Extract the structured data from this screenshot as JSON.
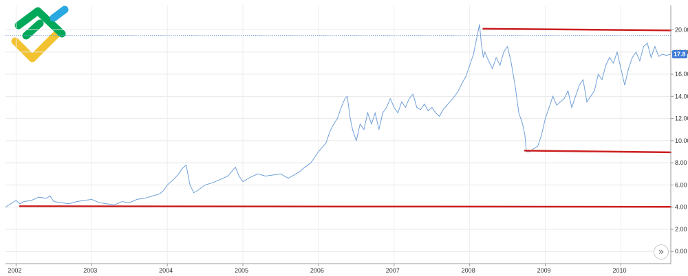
{
  "brand": {
    "colors": [
      "#00a859",
      "#2aa8e0",
      "#f2c230"
    ]
  },
  "scroll_button": {
    "icon": "double-chevron-right-icon",
    "label": "»"
  },
  "chart_data": {
    "type": "line",
    "x_ticks": [
      "2002",
      "2003",
      "2004",
      "2005",
      "2006",
      "2007",
      "2008",
      "2009",
      "2010"
    ],
    "y_ticks": [
      "0.00",
      "2.00",
      "4.00",
      "6.00",
      "8.00",
      "10.00",
      "12.00",
      "14.00",
      "16.00",
      "18.00",
      "20.00"
    ],
    "ylim": [
      -1.1,
      22.2
    ],
    "xlim": [
      2001.86,
      2010.66
    ],
    "grid": true,
    "last_value": {
      "label": "17.8",
      "value": 17.8
    },
    "reference_line": {
      "value": 19.5
    },
    "line_color": "#6f9fd8",
    "level_line_color": "#cc1f1f",
    "series": [
      {
        "x": [
          2001.86,
          2002.0,
          2002.05,
          2002.1,
          2002.2,
          2002.3,
          2002.4,
          2002.45,
          2002.5,
          2002.6,
          2002.7,
          2002.8,
          2002.9,
          2003.0,
          2003.1,
          2003.2,
          2003.3,
          2003.4,
          2003.5,
          2003.6,
          2003.7,
          2003.8,
          2003.9,
          2003.95,
          2004.0,
          2004.05,
          2004.1,
          2004.15,
          2004.2,
          2004.25,
          2004.3,
          2004.35,
          2004.4,
          2004.5,
          2004.6,
          2004.7,
          2004.8,
          2004.85,
          2004.9,
          2004.95,
          2005.0,
          2005.1,
          2005.2,
          2005.3,
          2005.4,
          2005.5,
          2005.6,
          2005.7,
          2005.75,
          2005.8,
          2005.9,
          2006.0,
          2006.1,
          2006.15,
          2006.2,
          2006.25,
          2006.3,
          2006.35,
          2006.38,
          2006.42,
          2006.45,
          2006.5,
          2006.55,
          2006.6,
          2006.65,
          2006.7,
          2006.75,
          2006.8,
          2006.85,
          2006.9,
          2006.95,
          2007.0,
          2007.05,
          2007.1,
          2007.15,
          2007.2,
          2007.25,
          2007.3,
          2007.35,
          2007.4,
          2007.45,
          2007.5,
          2007.55,
          2007.6,
          2007.65,
          2007.7,
          2007.75,
          2007.8,
          2007.85,
          2007.9,
          2007.95,
          2008.0,
          2008.05,
          2008.1,
          2008.13,
          2008.15,
          2008.18,
          2008.2,
          2008.25,
          2008.3,
          2008.35,
          2008.4,
          2008.45,
          2008.5,
          2008.55,
          2008.6,
          2008.65,
          2008.7,
          2008.73,
          2008.75,
          2008.8,
          2008.85,
          2008.9,
          2008.95,
          2009.0,
          2009.05,
          2009.1,
          2009.15,
          2009.2,
          2009.25,
          2009.3,
          2009.35,
          2009.4,
          2009.45,
          2009.5,
          2009.55,
          2009.6,
          2009.65,
          2009.7,
          2009.75,
          2009.8,
          2009.85,
          2009.9,
          2009.95,
          2010.0,
          2010.05,
          2010.1,
          2010.15,
          2010.2,
          2010.25,
          2010.3,
          2010.35,
          2010.4,
          2010.45,
          2010.5,
          2010.55,
          2010.6,
          2010.66
        ],
        "y": [
          4.0,
          4.6,
          4.3,
          4.5,
          4.6,
          4.9,
          4.8,
          5.0,
          4.5,
          4.4,
          4.3,
          4.5,
          4.6,
          4.7,
          4.4,
          4.3,
          4.2,
          4.5,
          4.4,
          4.7,
          4.8,
          5.0,
          5.2,
          5.5,
          6.0,
          6.3,
          6.6,
          7.0,
          7.5,
          7.8,
          6.0,
          5.3,
          5.5,
          6.0,
          6.2,
          6.5,
          6.8,
          7.2,
          7.6,
          6.8,
          6.3,
          6.7,
          7.0,
          6.8,
          6.9,
          7.0,
          6.6,
          7.0,
          7.2,
          7.5,
          8.0,
          9.0,
          9.8,
          10.8,
          11.5,
          12.0,
          13.0,
          13.8,
          14.0,
          12.0,
          11.0,
          10.0,
          11.5,
          11.0,
          12.5,
          11.5,
          12.5,
          11.0,
          12.5,
          13.0,
          13.8,
          13.0,
          12.5,
          13.5,
          13.0,
          13.8,
          14.2,
          13.0,
          12.8,
          13.3,
          12.7,
          13.0,
          12.5,
          12.2,
          12.8,
          13.2,
          13.6,
          14.0,
          14.5,
          15.2,
          15.8,
          16.8,
          17.8,
          19.5,
          20.5,
          19.0,
          17.5,
          18.0,
          17.2,
          16.5,
          17.5,
          16.8,
          18.0,
          18.5,
          17.0,
          15.0,
          12.5,
          11.5,
          10.5,
          9.0,
          9.0,
          9.3,
          9.5,
          10.5,
          12.0,
          13.0,
          14.0,
          13.2,
          13.5,
          13.8,
          14.5,
          13.0,
          14.0,
          15.0,
          15.5,
          13.5,
          14.0,
          14.5,
          16.0,
          15.5,
          16.8,
          17.5,
          17.0,
          18.0,
          16.5,
          15.0,
          16.5,
          17.5,
          18.0,
          17.2,
          18.5,
          18.8,
          17.5,
          18.5,
          17.6,
          17.8,
          17.7,
          17.8
        ]
      }
    ],
    "levels": [
      {
        "x0": 2002.05,
        "x1": 2010.66,
        "y0": 4.08,
        "y1": 4.03
      },
      {
        "x0": 2008.18,
        "x1": 2010.66,
        "y0": 20.1,
        "y1": 19.95
      },
      {
        "x0": 2008.73,
        "x1": 2010.66,
        "y0": 9.1,
        "y1": 8.95
      }
    ]
  }
}
